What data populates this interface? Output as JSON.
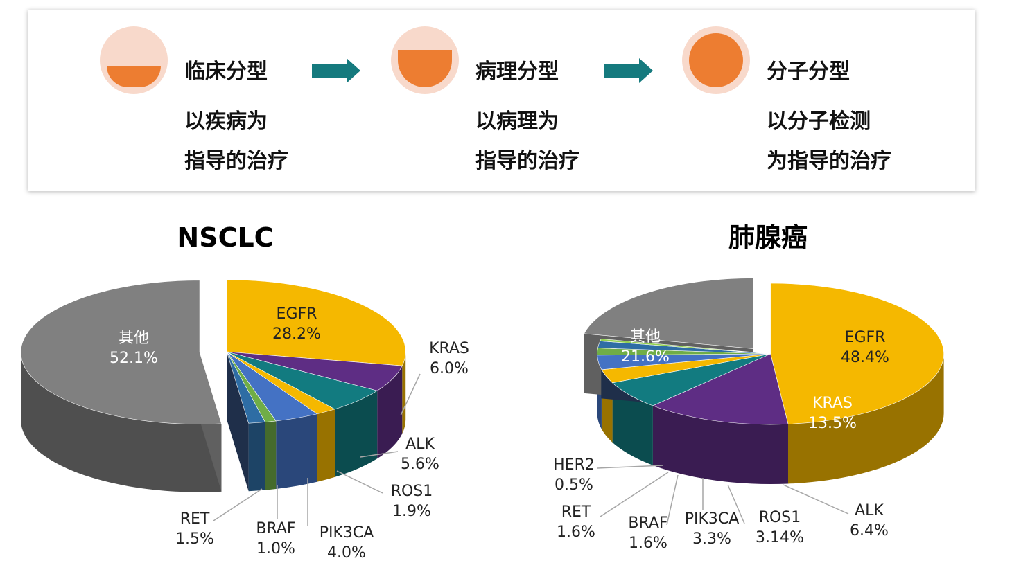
{
  "banner": {
    "stages": [
      {
        "title": "临床分型",
        "line1": "以疾病为",
        "line2": "指导的治疗",
        "fill": "bottom"
      },
      {
        "title": "病理分型",
        "line1": "以病理为",
        "line2": "指导的治疗",
        "fill": "mostly"
      },
      {
        "title": "分子分型",
        "line1": "以分子检测",
        "line2": "为指导的治疗",
        "fill": "full"
      }
    ],
    "colors": {
      "accent": "#ed7d31",
      "light": "#f8d9cb",
      "arrow": "#157a7e"
    }
  },
  "chart_data": [
    {
      "type": "pie",
      "title": "NSCLC",
      "slices": [
        {
          "label": "EGFR",
          "value": 28.2,
          "display": "28.2%",
          "color": "#f5b800"
        },
        {
          "label": "KRAS",
          "value": 6.0,
          "display": "6.0%",
          "color": "#5e2d84"
        },
        {
          "label": "ALK",
          "value": 5.6,
          "display": "5.6%",
          "color": "#127b80"
        },
        {
          "label": "ROS1",
          "value": 1.9,
          "display": "1.9%",
          "color": "#f5b800"
        },
        {
          "label": "PIK3CA",
          "value": 4.0,
          "display": "4.0%",
          "color": "#4472c4"
        },
        {
          "label": "BRAF",
          "value": 1.0,
          "display": "1.0%",
          "color": "#70ad47"
        },
        {
          "label": "RET",
          "value": 1.5,
          "display": "1.5%",
          "color": "#2e6da4"
        },
        {
          "label": "其他",
          "value": 52.1,
          "display": "52.1%",
          "color": "#808080"
        }
      ]
    },
    {
      "type": "pie",
      "title": "肺腺癌",
      "slices": [
        {
          "label": "EGFR",
          "value": 48.4,
          "display": "48.4%",
          "color": "#f5b800"
        },
        {
          "label": "KRAS",
          "value": 13.5,
          "display": "13.5%",
          "color": "#5e2d84"
        },
        {
          "label": "ALK",
          "value": 6.4,
          "display": "6.4%",
          "color": "#127b80"
        },
        {
          "label": "ROS1",
          "value": 3.14,
          "display": "3.14%",
          "color": "#f5b800"
        },
        {
          "label": "PIK3CA",
          "value": 3.3,
          "display": "3.3%",
          "color": "#4472c4"
        },
        {
          "label": "BRAF",
          "value": 1.6,
          "display": "1.6%",
          "color": "#70ad47"
        },
        {
          "label": "RET",
          "value": 1.6,
          "display": "1.6%",
          "color": "#2e6da4"
        },
        {
          "label": "HER2",
          "value": 0.5,
          "display": "0.5%",
          "color": "#92d050"
        },
        {
          "label": "其他",
          "value": 21.6,
          "display": "21.6%",
          "color": "#808080"
        }
      ]
    }
  ]
}
